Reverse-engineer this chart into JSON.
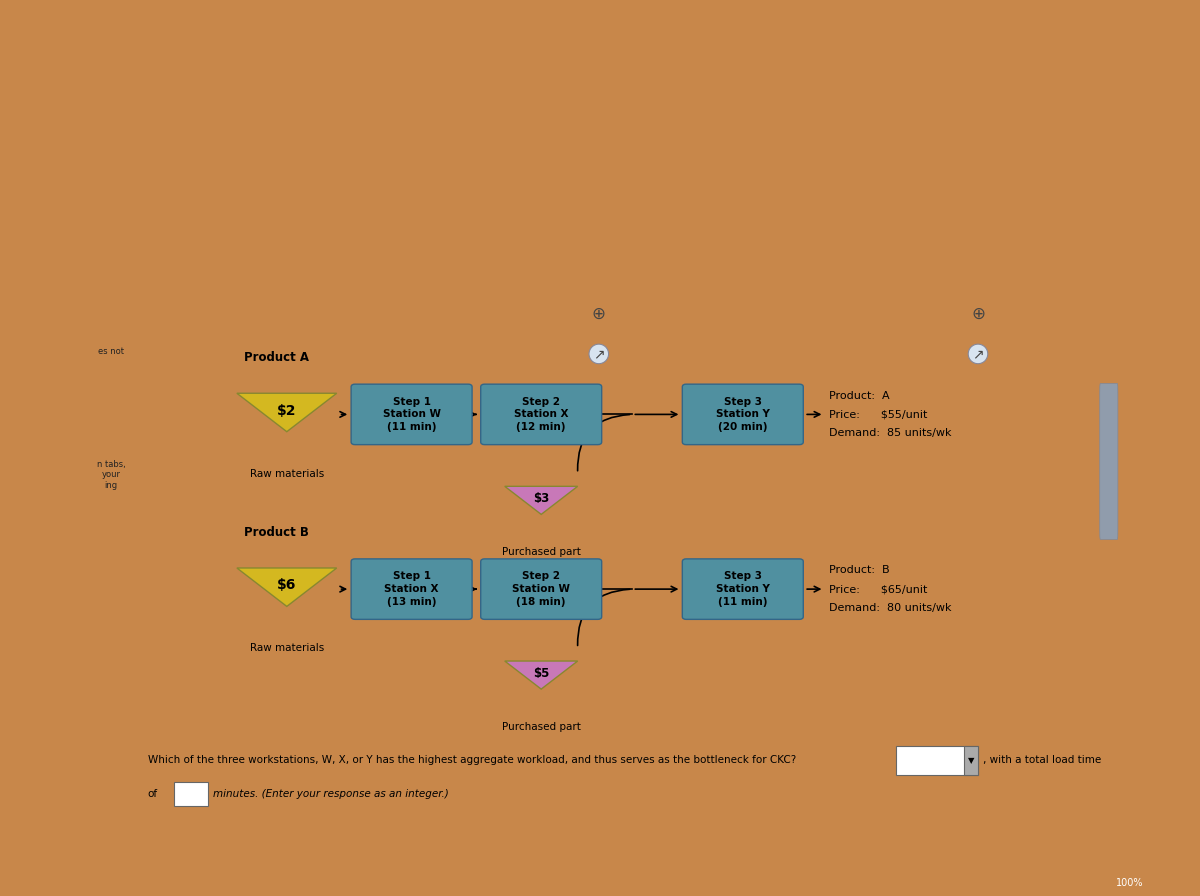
{
  "bg_color": "#c8874a",
  "outer_bg": "#c8874a",
  "screen_color": "#c8d4e0",
  "panel_bg": "#d0dce8",
  "left_panel_color": "#c0ccd8",
  "right_scroll_color": "#b8c4d0",
  "product_a": {
    "label": "Product A",
    "raw_label": "$2",
    "raw_color": "#d4b820",
    "step1_label": "Step 1\nStation W\n(11 min)",
    "step2_label": "Step 2\nStation X\n(12 min)",
    "step3_label": "Step 3\nStation Y\n(20 min)",
    "box_color": "#5090a0",
    "purchased_label": "$3",
    "purchased_color": "#c878b8",
    "info_line1": "Product:  A",
    "info_line2": "Price:      $55/unit",
    "info_line3": "Demand:  85 units/wk",
    "raw_mat_label": "Raw materials",
    "purchased_part_label": "Purchased part"
  },
  "product_b": {
    "label": "Product B",
    "raw_label": "$6",
    "raw_color": "#d4b820",
    "step1_label": "Step 1\nStation X\n(13 min)",
    "step2_label": "Step 2\nStation W\n(18 min)",
    "step3_label": "Step 3\nStation Y\n(11 min)",
    "box_color": "#5090a0",
    "purchased_label": "$5",
    "purchased_color": "#c878b8",
    "info_line1": "Product:  B",
    "info_line2": "Price:      $65/unit",
    "info_line3": "Demand:  80 units/wk",
    "raw_mat_label": "Raw materials",
    "purchased_part_label": "Purchased part"
  },
  "question_line1": "Which of the three workstations, W, X, or Y has the highest aggregate workload, and thus serves as the bottleneck for CKC?",
  "with_text": ", with a total load time",
  "question_line2_prefix": "of",
  "question_line2_suffix": "minutes. (Enter your response as an integer.)"
}
